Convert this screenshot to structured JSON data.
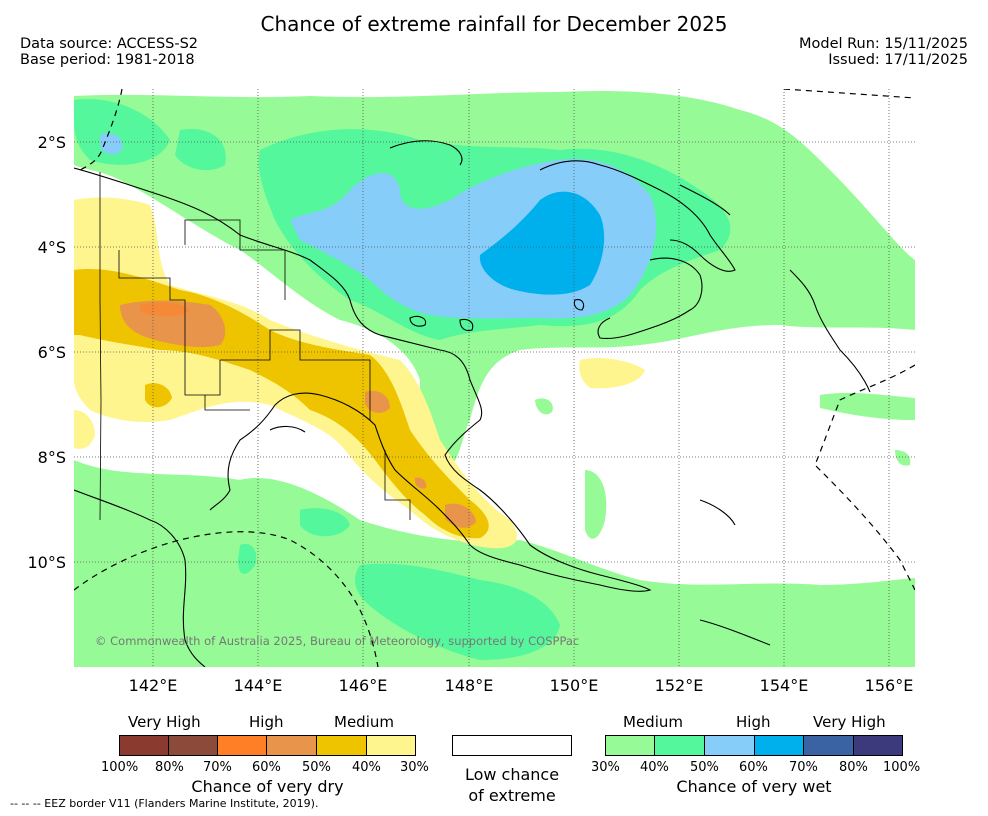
{
  "title": "Chance of extreme rainfall for December 2025",
  "meta": {
    "data_source": "Data source: ACCESS-S2",
    "base_period": "Base period: 1981-2018",
    "model_run": "Model Run: 15/11/2025",
    "issued": "Issued: 17/11/2025"
  },
  "map": {
    "lat_ticks": [
      "2°S",
      "4°S",
      "6°S",
      "8°S",
      "10°S"
    ],
    "lon_ticks": [
      "142°E",
      "144°E",
      "146°E",
      "148°E",
      "150°E",
      "152°E",
      "154°E",
      "156°E"
    ],
    "copyright": "© Commonwealth of Australia 2025, Bureau of Meteorology, supported by COSPPac"
  },
  "legend": {
    "dry": {
      "headers": [
        "Very High",
        "High",
        "Medium"
      ],
      "colors": [
        "#8b3a2f",
        "#8b4a3a",
        "#ff7f27",
        "#e8954b",
        "#eec400",
        "#fff58f"
      ],
      "ticks": [
        "100%",
        "80%",
        "70%",
        "60%",
        "50%",
        "40%",
        "30%"
      ],
      "caption": "Chance of very dry"
    },
    "low": {
      "caption_line1": "Low chance",
      "caption_line2": "of extreme"
    },
    "wet": {
      "headers": [
        "Medium",
        "High",
        "Very High"
      ],
      "colors": [
        "#96fb96",
        "#55f79c",
        "#87cdfa",
        "#00b0ec",
        "#3a63a3",
        "#3c3a7c"
      ],
      "ticks": [
        "30%",
        "40%",
        "50%",
        "60%",
        "70%",
        "80%",
        "100%"
      ],
      "caption": "Chance of very wet"
    }
  },
  "footnote": "--  --  -- EEZ border V11 (Flanders Marine Institute, 2019)."
}
